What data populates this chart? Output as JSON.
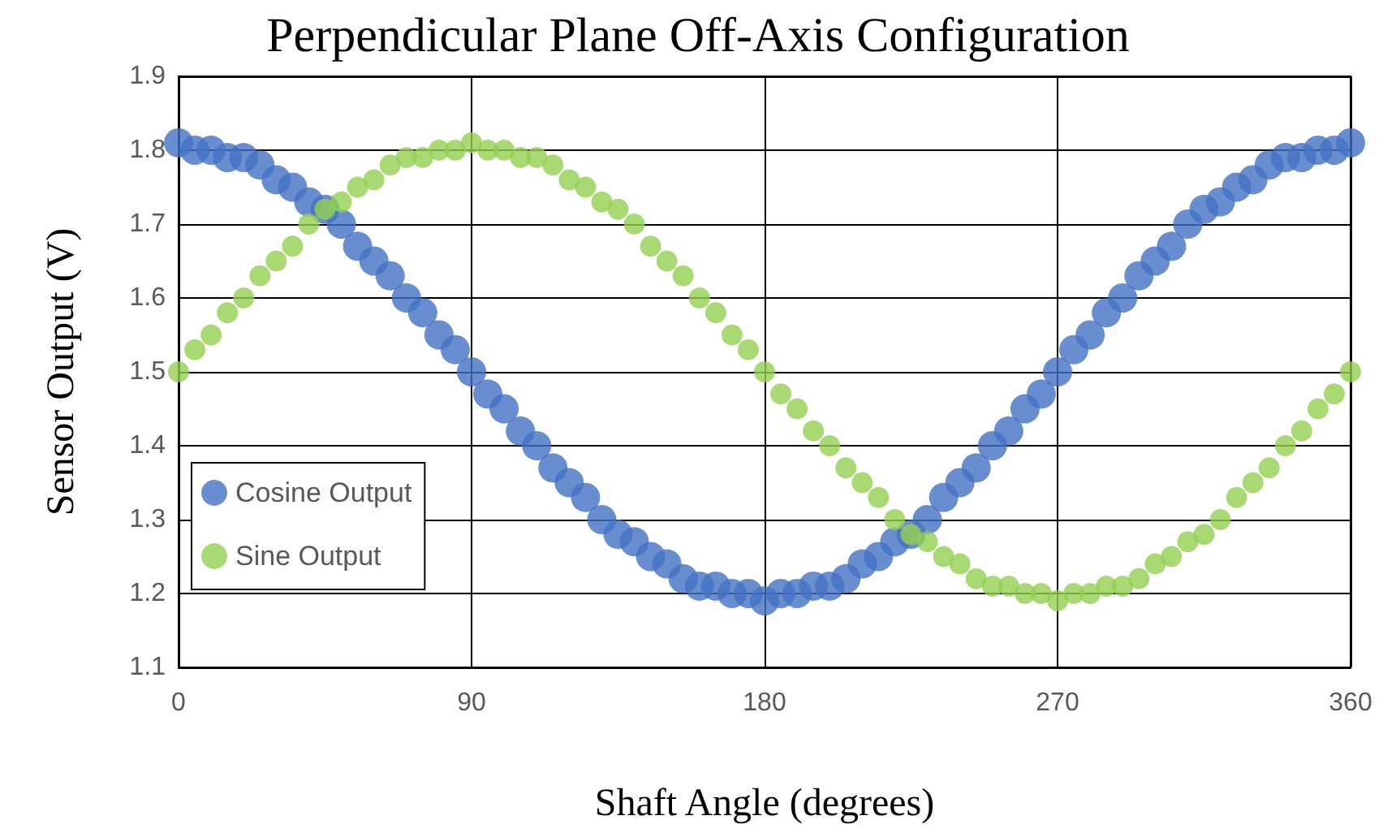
{
  "chart_data": {
    "type": "scatter",
    "title": "Perpendicular Plane Off-Axis Configuration",
    "xlabel": "Shaft Angle (degrees)",
    "ylabel": "Sensor Output (V)",
    "x": [
      0,
      5,
      10,
      15,
      20,
      25,
      30,
      35,
      40,
      45,
      50,
      55,
      60,
      65,
      70,
      75,
      80,
      85,
      90,
      95,
      100,
      105,
      110,
      115,
      120,
      125,
      130,
      135,
      140,
      145,
      150,
      155,
      160,
      165,
      170,
      175,
      180,
      185,
      190,
      195,
      200,
      205,
      210,
      215,
      220,
      225,
      230,
      235,
      240,
      245,
      250,
      255,
      260,
      265,
      270,
      275,
      280,
      285,
      290,
      295,
      300,
      305,
      310,
      315,
      320,
      325,
      330,
      335,
      340,
      345,
      350,
      355,
      360
    ],
    "series": [
      {
        "name": "Cosine Output",
        "color": "#4472c4",
        "values": [
          1.81,
          1.8,
          1.8,
          1.79,
          1.79,
          1.78,
          1.76,
          1.75,
          1.73,
          1.72,
          1.7,
          1.67,
          1.65,
          1.63,
          1.6,
          1.58,
          1.55,
          1.53,
          1.5,
          1.47,
          1.45,
          1.42,
          1.4,
          1.37,
          1.35,
          1.33,
          1.3,
          1.28,
          1.27,
          1.25,
          1.24,
          1.22,
          1.21,
          1.21,
          1.2,
          1.2,
          1.19,
          1.2,
          1.2,
          1.21,
          1.21,
          1.22,
          1.24,
          1.25,
          1.27,
          1.28,
          1.3,
          1.33,
          1.35,
          1.37,
          1.4,
          1.42,
          1.45,
          1.47,
          1.5,
          1.53,
          1.55,
          1.58,
          1.6,
          1.63,
          1.65,
          1.67,
          1.7,
          1.72,
          1.73,
          1.75,
          1.76,
          1.78,
          1.79,
          1.79,
          1.8,
          1.8,
          1.81
        ]
      },
      {
        "name": "Sine Output",
        "color": "#92d050",
        "values": [
          1.5,
          1.53,
          1.55,
          1.58,
          1.6,
          1.63,
          1.65,
          1.67,
          1.7,
          1.72,
          1.73,
          1.75,
          1.76,
          1.78,
          1.79,
          1.79,
          1.8,
          1.8,
          1.81,
          1.8,
          1.8,
          1.79,
          1.79,
          1.78,
          1.76,
          1.75,
          1.73,
          1.72,
          1.7,
          1.67,
          1.65,
          1.63,
          1.6,
          1.58,
          1.55,
          1.53,
          1.5,
          1.47,
          1.45,
          1.42,
          1.4,
          1.37,
          1.35,
          1.33,
          1.3,
          1.28,
          1.27,
          1.25,
          1.24,
          1.22,
          1.21,
          1.21,
          1.2,
          1.2,
          1.19,
          1.2,
          1.2,
          1.21,
          1.21,
          1.22,
          1.24,
          1.25,
          1.27,
          1.28,
          1.3,
          1.33,
          1.35,
          1.37,
          1.4,
          1.42,
          1.45,
          1.47,
          1.5
        ]
      }
    ],
    "xlim": [
      0,
      360
    ],
    "xticks": [
      0,
      90,
      180,
      270,
      360
    ],
    "ylim": [
      1.1,
      1.9
    ],
    "yticks": [
      1.1,
      1.2,
      1.3,
      1.4,
      1.5,
      1.6,
      1.7,
      1.8,
      1.9
    ],
    "grid": true,
    "legend": "left",
    "marker": "circle"
  }
}
